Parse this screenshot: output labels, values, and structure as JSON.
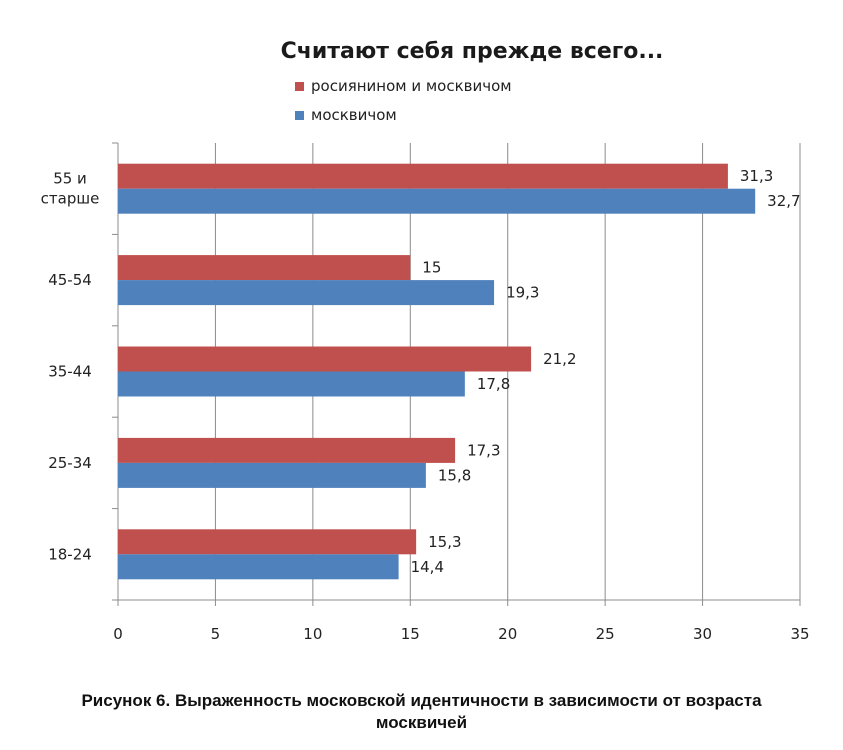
{
  "chart_data": {
    "type": "bar",
    "orientation": "horizontal",
    "title": "Считают себя прежде всего...",
    "categories": [
      "55 и старше",
      "45-54",
      "35-44",
      "25-34",
      "18-24"
    ],
    "series": [
      {
        "name": "росиянином и москвичом",
        "color": "#C0504D",
        "values": [
          31.3,
          15,
          21.2,
          17.3,
          15.3
        ],
        "labels": [
          "31,3",
          "15",
          "21,2",
          "17,3",
          "15,3"
        ]
      },
      {
        "name": "москвичом",
        "color": "#4F81BD",
        "values": [
          32.7,
          19.3,
          17.8,
          15.8,
          14.4
        ],
        "labels": [
          "32,7",
          "19,3",
          "17,8",
          "15,8",
          "14,4"
        ]
      }
    ],
    "xlim": [
      0,
      35
    ],
    "xticks": [
      "0",
      "5",
      "10",
      "15",
      "20",
      "25",
      "30",
      "35"
    ],
    "grid": true,
    "legend_position": "top"
  },
  "caption": {
    "line1": "Рисунок 6. Выраженность московской идентичности в зависимости от возраста",
    "line2": "москвичей"
  }
}
